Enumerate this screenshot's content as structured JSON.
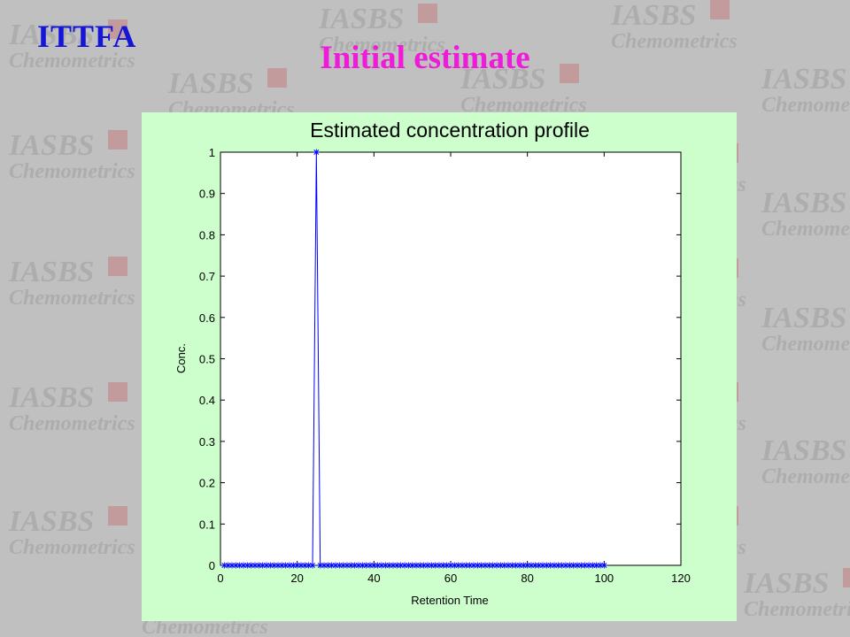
{
  "slide": {
    "label": "ITTFA",
    "title": "Initial estimate",
    "watermark": {
      "line1": "IASBS",
      "line2": "Chemometrics"
    },
    "colors": {
      "label": "#1515d8",
      "title": "#ee1bd8",
      "background": "#c0c0c0",
      "chart_panel": "#ccffcc"
    }
  },
  "chart_data": {
    "type": "line",
    "title": "Estimated concentration profile",
    "xlabel": "Retention Time",
    "ylabel": "Conc.",
    "xlim": [
      0,
      120
    ],
    "ylim": [
      0,
      1
    ],
    "xticks": [
      0,
      20,
      40,
      60,
      80,
      100,
      120
    ],
    "yticks": [
      0,
      0.1,
      0.2,
      0.3,
      0.4,
      0.5,
      0.6,
      0.7,
      0.8,
      0.9,
      1
    ],
    "grid": false,
    "marker": "asterisk",
    "color": "#0000ff",
    "series": [
      {
        "x_start": 1,
        "x_end": 100,
        "x_step": 1,
        "values": [
          0,
          0,
          0,
          0,
          0,
          0,
          0,
          0,
          0,
          0,
          0,
          0,
          0,
          0,
          0,
          0,
          0,
          0,
          0,
          0,
          0,
          0,
          0,
          0,
          1,
          0,
          0,
          0,
          0,
          0,
          0,
          0,
          0,
          0,
          0,
          0,
          0,
          0,
          0,
          0,
          0,
          0,
          0,
          0,
          0,
          0,
          0,
          0,
          0,
          0,
          0,
          0,
          0,
          0,
          0,
          0,
          0,
          0,
          0,
          0,
          0,
          0,
          0,
          0,
          0,
          0,
          0,
          0,
          0,
          0,
          0,
          0,
          0,
          0,
          0,
          0,
          0,
          0,
          0,
          0,
          0,
          0,
          0,
          0,
          0,
          0,
          0,
          0,
          0,
          0,
          0,
          0,
          0,
          0,
          0,
          0,
          0,
          0,
          0,
          0
        ]
      }
    ]
  }
}
